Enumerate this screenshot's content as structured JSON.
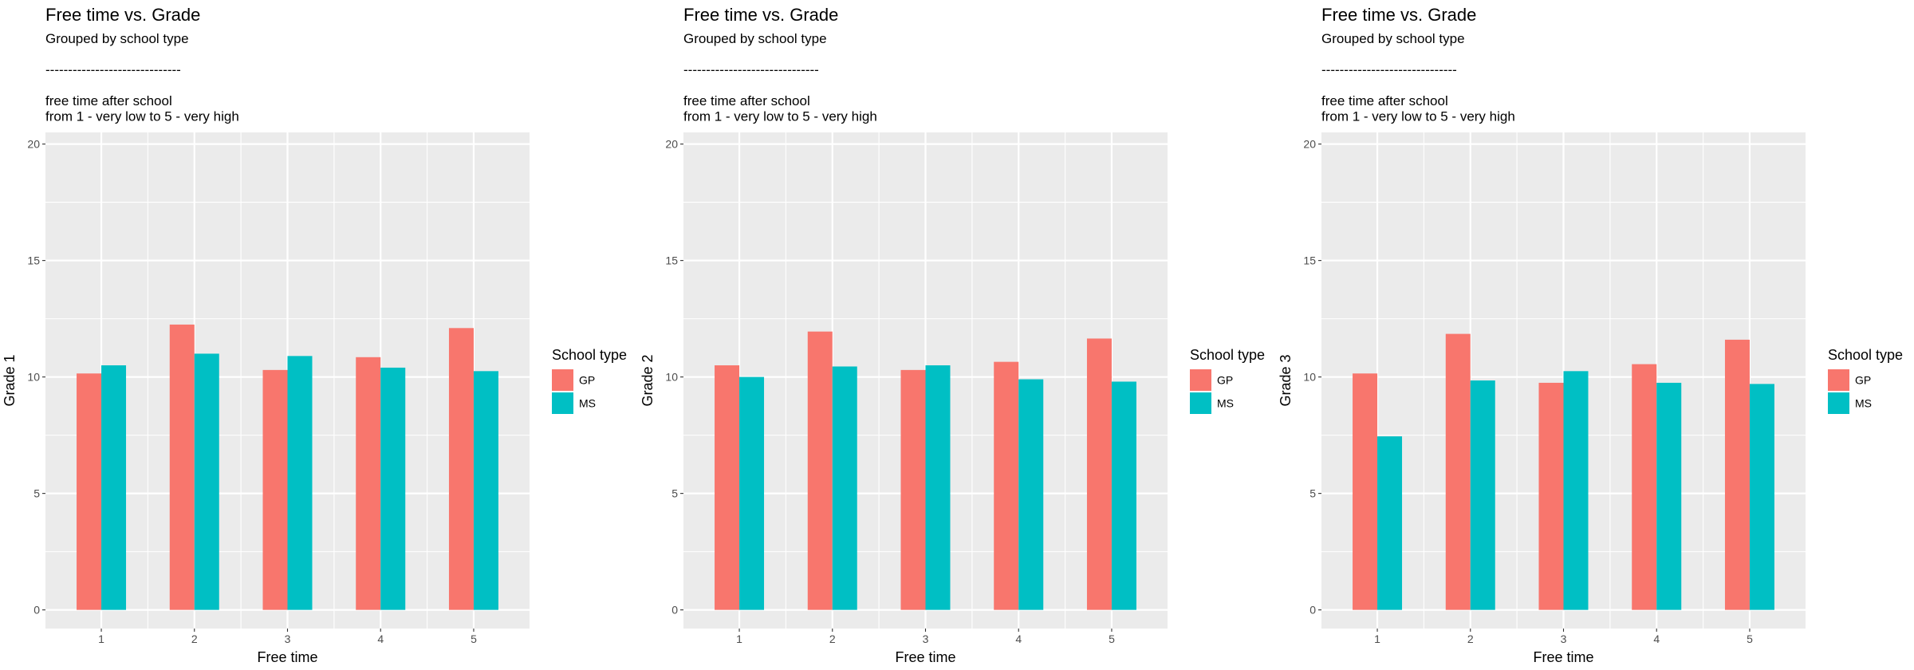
{
  "chart_data": [
    {
      "type": "bar",
      "title": "Free time vs. Grade",
      "subtitle_lines": [
        "Grouped by school type",
        "",
        "------------------------------",
        "",
        "free time after school",
        "from 1 - very low to 5 - very high"
      ],
      "xlabel": "Free time",
      "ylabel": "Grade 1",
      "categories": [
        "1",
        "2",
        "3",
        "4",
        "5"
      ],
      "ylim": [
        -0.8,
        20.5
      ],
      "yticks": [
        0,
        5,
        10,
        15,
        20
      ],
      "grid": true,
      "legend_title": "School type",
      "legend_position": "right",
      "series": [
        {
          "name": "GP",
          "color": "#F8766D",
          "values": [
            10.15,
            12.25,
            10.3,
            10.85,
            12.1
          ]
        },
        {
          "name": "MS",
          "color": "#00BFC4",
          "values": [
            10.5,
            11.0,
            10.9,
            10.4,
            10.25
          ]
        }
      ]
    },
    {
      "type": "bar",
      "title": "Free time vs. Grade",
      "subtitle_lines": [
        "Grouped by school type",
        "",
        "------------------------------",
        "",
        "free time after school",
        "from 1 - very low to 5 - very high"
      ],
      "xlabel": "Free time",
      "ylabel": "Grade 2",
      "categories": [
        "1",
        "2",
        "3",
        "4",
        "5"
      ],
      "ylim": [
        -0.8,
        20.5
      ],
      "yticks": [
        0,
        5,
        10,
        15,
        20
      ],
      "grid": true,
      "legend_title": "School type",
      "legend_position": "right",
      "series": [
        {
          "name": "GP",
          "color": "#F8766D",
          "values": [
            10.5,
            11.95,
            10.3,
            10.65,
            11.65
          ]
        },
        {
          "name": "MS",
          "color": "#00BFC4",
          "values": [
            10.0,
            10.45,
            10.5,
            9.9,
            9.8
          ]
        }
      ]
    },
    {
      "type": "bar",
      "title": "Free time vs. Grade",
      "subtitle_lines": [
        "Grouped by school type",
        "",
        "------------------------------",
        "",
        "free time after school",
        "from 1 - very low to 5 - very high"
      ],
      "xlabel": "Free time",
      "ylabel": "Grade 3",
      "categories": [
        "1",
        "2",
        "3",
        "4",
        "5"
      ],
      "ylim": [
        -0.8,
        20.5
      ],
      "yticks": [
        0,
        5,
        10,
        15,
        20
      ],
      "grid": true,
      "legend_title": "School type",
      "legend_position": "right",
      "series": [
        {
          "name": "GP",
          "color": "#F8766D",
          "values": [
            10.15,
            11.85,
            9.75,
            10.55,
            11.6
          ]
        },
        {
          "name": "MS",
          "color": "#00BFC4",
          "values": [
            7.45,
            9.85,
            10.25,
            9.75,
            9.7
          ]
        }
      ]
    }
  ]
}
